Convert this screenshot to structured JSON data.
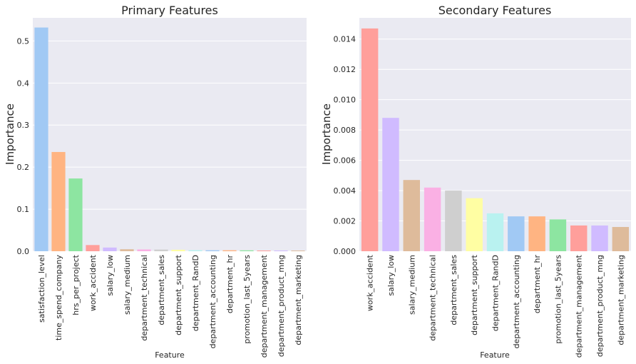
{
  "chart_data": [
    {
      "type": "bar",
      "title": "Primary Features",
      "xlabel": "Feature",
      "ylabel": "Importance",
      "ylim": [
        0,
        0.555
      ],
      "yticks": [
        "0.0",
        "0.1",
        "0.2",
        "0.3",
        "0.4",
        "0.5"
      ],
      "categories": [
        "satisfaction_level",
        "time_spend_company",
        "hrs_per_project",
        "work_accident",
        "salary_low",
        "salary_medium",
        "department_technical",
        "department_sales",
        "department_support",
        "department_RandD",
        "department_accounting",
        "department_hr",
        "promotion_last_5years",
        "department_management",
        "department_product_mng",
        "department_marketing"
      ],
      "values": [
        0.532,
        0.236,
        0.173,
        0.0147,
        0.0088,
        0.0047,
        0.0042,
        0.004,
        0.0035,
        0.0025,
        0.0023,
        0.0023,
        0.0021,
        0.0017,
        0.0017,
        0.0016
      ],
      "colors": [
        "#a1c9f4",
        "#ffb482",
        "#8de5a1",
        "#ff9f9b",
        "#d0bbff",
        "#debb9b",
        "#fab0e4",
        "#cfcfcf",
        "#fffea3",
        "#b9f2f0",
        "#a1c9f4",
        "#ffb482",
        "#8de5a1",
        "#ff9f9b",
        "#d0bbff",
        "#debb9b"
      ],
      "grid": true
    },
    {
      "type": "bar",
      "title": "Secondary Features",
      "xlabel": "Feature",
      "ylabel": "Importance",
      "ylim": [
        0,
        0.0154
      ],
      "yticks": [
        "0.000",
        "0.002",
        "0.004",
        "0.006",
        "0.008",
        "0.010",
        "0.012",
        "0.014"
      ],
      "categories": [
        "work_accident",
        "salary_low",
        "salary_medium",
        "department_technical",
        "department_sales",
        "department_support",
        "department_RandD",
        "department_accounting",
        "department_hr",
        "promotion_last_5years",
        "department_management",
        "department_product_mng",
        "department_marketing"
      ],
      "values": [
        0.0147,
        0.0088,
        0.0047,
        0.0042,
        0.004,
        0.0035,
        0.0025,
        0.0023,
        0.0023,
        0.0021,
        0.0017,
        0.0017,
        0.0016
      ],
      "colors": [
        "#ff9f9b",
        "#d0bbff",
        "#debb9b",
        "#fab0e4",
        "#cfcfcf",
        "#fffea3",
        "#b9f2f0",
        "#a1c9f4",
        "#ffb482",
        "#8de5a1",
        "#ff9f9b",
        "#d0bbff",
        "#debb9b"
      ],
      "grid": true
    }
  ]
}
